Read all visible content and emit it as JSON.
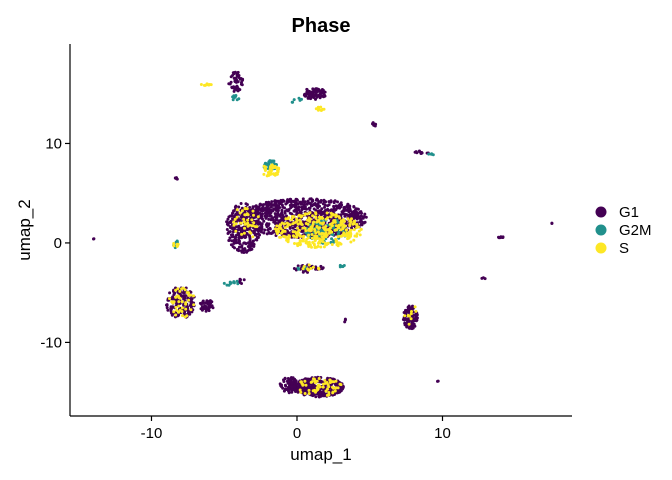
{
  "chart_data": {
    "type": "scatter",
    "title": "Phase",
    "xlabel": "umap_1",
    "ylabel": "umap_2",
    "xlim": [
      -15.6,
      18.9
    ],
    "ylim": [
      -17.4,
      20.0
    ],
    "xticks": [
      -10,
      0,
      10
    ],
    "yticks": [
      -10,
      0,
      10
    ],
    "grid": false,
    "legend_position": "right",
    "series": [
      {
        "name": "G1",
        "color": "#440154",
        "clusters": [
          {
            "cx": 0.5,
            "cy": 2.5,
            "rx": 4.3,
            "ry": 2.0,
            "n": 900
          },
          {
            "cx": -3.7,
            "cy": 1.5,
            "rx": 1.2,
            "ry": 2.5,
            "n": 260
          },
          {
            "cx": 1.5,
            "cy": -14.5,
            "rx": 1.7,
            "ry": 1.0,
            "n": 340
          },
          {
            "cx": -0.5,
            "cy": -14.3,
            "rx": 0.7,
            "ry": 0.8,
            "n": 70
          },
          {
            "cx": -8.0,
            "cy": -6.0,
            "rx": 1.0,
            "ry": 1.6,
            "n": 160
          },
          {
            "cx": -6.2,
            "cy": -6.3,
            "rx": 0.5,
            "ry": 0.6,
            "n": 40
          },
          {
            "cx": 7.8,
            "cy": -7.5,
            "rx": 0.5,
            "ry": 1.2,
            "n": 90
          },
          {
            "cx": 1.2,
            "cy": 15.0,
            "rx": 0.8,
            "ry": 0.6,
            "n": 80
          },
          {
            "cx": -4.2,
            "cy": 16.2,
            "rx": 0.5,
            "ry": 1.0,
            "n": 50
          },
          {
            "cx": -3.9,
            "cy": -3.8,
            "rx": 0.3,
            "ry": 0.3,
            "n": 8
          },
          {
            "cx": 8.6,
            "cy": 9.1,
            "rx": 0.5,
            "ry": 0.2,
            "n": 12
          },
          {
            "cx": 5.3,
            "cy": 11.9,
            "rx": 0.2,
            "ry": 0.2,
            "n": 8
          },
          {
            "cx": -8.3,
            "cy": 6.5,
            "rx": 0.1,
            "ry": 0.15,
            "n": 6
          },
          {
            "cx": 14.0,
            "cy": 0.6,
            "rx": 0.2,
            "ry": 0.1,
            "n": 8
          },
          {
            "cx": -14.0,
            "cy": 0.4,
            "rx": 0.05,
            "ry": 0.05,
            "n": 2
          },
          {
            "cx": 17.5,
            "cy": 2.0,
            "rx": 0.05,
            "ry": 0.05,
            "n": 2
          },
          {
            "cx": 9.7,
            "cy": -13.9,
            "rx": 0.05,
            "ry": 0.05,
            "n": 2
          },
          {
            "cx": 12.8,
            "cy": -3.6,
            "rx": 0.15,
            "ry": 0.1,
            "n": 3
          },
          {
            "cx": 0.8,
            "cy": -2.6,
            "rx": 1.1,
            "ry": 0.4,
            "n": 30
          },
          {
            "cx": 3.3,
            "cy": -7.8,
            "rx": 0.1,
            "ry": 0.2,
            "n": 3
          }
        ]
      },
      {
        "name": "G2M",
        "color": "#21908C",
        "clusters": [
          {
            "cx": 2.0,
            "cy": 1.2,
            "rx": 1.4,
            "ry": 1.3,
            "n": 90
          },
          {
            "cx": -1.8,
            "cy": 7.8,
            "rx": 0.5,
            "ry": 0.5,
            "n": 35
          },
          {
            "cx": -4.2,
            "cy": 14.6,
            "rx": 0.3,
            "ry": 0.3,
            "n": 10
          },
          {
            "cx": -4.6,
            "cy": -4.0,
            "rx": 0.6,
            "ry": 0.3,
            "n": 10
          },
          {
            "cx": 0.3,
            "cy": -2.5,
            "rx": 0.4,
            "ry": 0.3,
            "n": 6
          },
          {
            "cx": -8.3,
            "cy": -0.1,
            "rx": 0.2,
            "ry": 0.4,
            "n": 8
          },
          {
            "cx": 9.3,
            "cy": 8.9,
            "rx": 0.3,
            "ry": 0.1,
            "n": 5
          },
          {
            "cx": 0.0,
            "cy": 14.3,
            "rx": 0.4,
            "ry": 0.3,
            "n": 6
          },
          {
            "cx": 3.1,
            "cy": -2.2,
            "rx": 0.2,
            "ry": 0.3,
            "n": 5
          }
        ]
      },
      {
        "name": "S",
        "color": "#FDE725",
        "clusters": [
          {
            "cx": 1.5,
            "cy": 1.3,
            "rx": 3.0,
            "ry": 1.8,
            "n": 320
          },
          {
            "cx": -1.8,
            "cy": 7.3,
            "rx": 0.6,
            "ry": 0.7,
            "n": 45
          },
          {
            "cx": -6.2,
            "cy": 15.9,
            "rx": 0.4,
            "ry": 0.1,
            "n": 10
          },
          {
            "cx": 1.6,
            "cy": 13.5,
            "rx": 0.3,
            "ry": 0.2,
            "n": 10
          },
          {
            "cx": 1.5,
            "cy": -14.5,
            "rx": 1.6,
            "ry": 0.9,
            "n": 60
          },
          {
            "cx": -7.9,
            "cy": -6.0,
            "rx": 0.9,
            "ry": 1.5,
            "n": 40
          },
          {
            "cx": -3.6,
            "cy": 2.0,
            "rx": 1.0,
            "ry": 2.0,
            "n": 40
          },
          {
            "cx": 7.8,
            "cy": -7.2,
            "rx": 0.5,
            "ry": 1.0,
            "n": 10
          },
          {
            "cx": -8.3,
            "cy": -0.2,
            "rx": 0.2,
            "ry": 0.3,
            "n": 6
          },
          {
            "cx": 0.9,
            "cy": -2.5,
            "rx": 1.0,
            "ry": 0.3,
            "n": 10
          }
        ]
      }
    ]
  }
}
